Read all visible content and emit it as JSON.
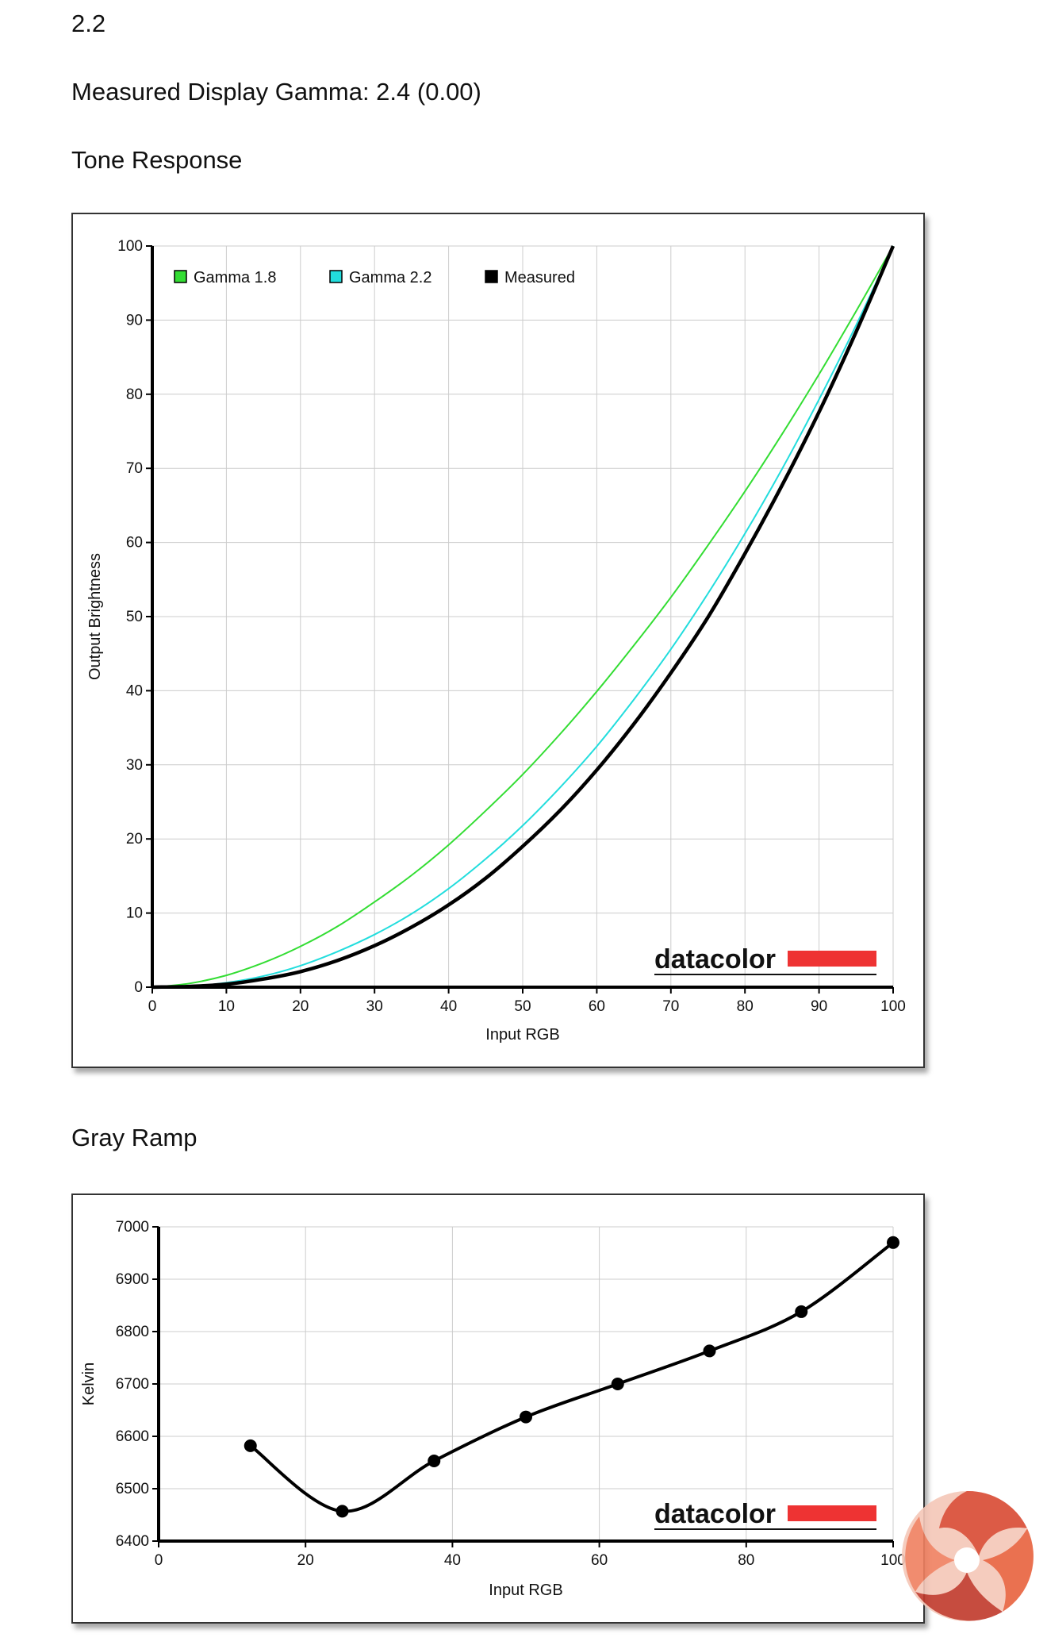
{
  "page": {
    "gamma_target": "2.2",
    "measured_gamma": "Measured Display Gamma: 2.4 (0.00)",
    "tone_response_heading": "Tone Response",
    "gray_ramp_heading": "Gray Ramp"
  },
  "chart_data": [
    {
      "type": "line",
      "xlabel": "Input RGB",
      "ylabel": "Output Brightness",
      "xlim": [
        0,
        100
      ],
      "ylim": [
        0,
        100
      ],
      "x_ticks": [
        0,
        10,
        20,
        30,
        40,
        50,
        60,
        70,
        80,
        90,
        100
      ],
      "y_ticks": [
        0,
        10,
        20,
        30,
        40,
        50,
        60,
        70,
        80,
        90,
        100
      ],
      "grid": true,
      "legend": "top-left",
      "x": [
        0,
        5,
        10,
        15,
        20,
        25,
        30,
        35,
        40,
        45,
        50,
        55,
        60,
        65,
        70,
        75,
        80,
        85,
        90,
        95,
        100
      ],
      "series": [
        {
          "name": "Gamma 1.8",
          "color": "#33dd33",
          "values": [
            0,
            0.5,
            1.6,
            3.3,
            5.5,
            8.2,
            11.5,
            15.1,
            19.2,
            23.8,
            28.7,
            34.1,
            39.9,
            46.1,
            52.6,
            59.6,
            66.9,
            74.6,
            82.7,
            91.2,
            100
          ]
        },
        {
          "name": "Gamma 2.2",
          "color": "#22dddd",
          "values": [
            0,
            0.1,
            0.6,
            1.5,
            2.9,
            4.8,
            7.1,
            9.9,
            13.3,
            17.3,
            21.8,
            26.9,
            32.5,
            38.8,
            45.6,
            53.1,
            61.2,
            69.9,
            79.3,
            89.3,
            100
          ]
        },
        {
          "name": "Measured",
          "color": "#000000",
          "values": [
            0,
            0.1,
            0.4,
            1.1,
            2.1,
            3.6,
            5.6,
            8.1,
            11.1,
            14.7,
            19.0,
            23.8,
            29.3,
            35.5,
            42.4,
            49.9,
            58.5,
            67.7,
            77.6,
            88.4,
            100
          ]
        }
      ]
    },
    {
      "type": "line",
      "xlabel": "Input RGB",
      "ylabel": "Kelvin",
      "xlim": [
        0,
        100
      ],
      "ylim": [
        6400,
        7000
      ],
      "x_ticks": [
        0,
        20,
        40,
        60,
        80,
        100
      ],
      "y_ticks": [
        6400,
        6500,
        6600,
        6700,
        6800,
        6900,
        7000
      ],
      "grid": true,
      "series": [
        {
          "color": "#000000",
          "x": [
            12.5,
            25,
            37.5,
            50,
            62.5,
            75,
            87.5,
            100
          ],
          "values": [
            6582,
            6457,
            6553,
            6637,
            6700,
            6763,
            6838,
            6970
          ]
        }
      ]
    }
  ],
  "logos": {
    "datacolor_text": "datacolor",
    "datacolor_bar_color": "#ee3333",
    "watermark_icon": "kitguru-swirl-icon"
  }
}
